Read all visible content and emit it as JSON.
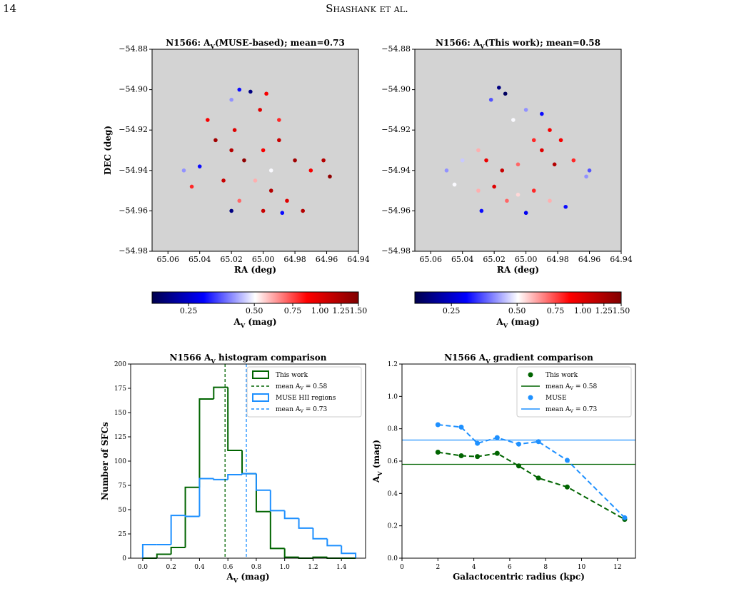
{
  "header": {
    "page_number": "14",
    "running_title": "Shashank et al."
  },
  "chart_data": [
    {
      "type": "scatter",
      "title": "N1566: A_V(MUSE-based); mean=0.73",
      "xlabel": "RA (deg)",
      "ylabel": "DEC (deg)",
      "background": "#d3d3d3",
      "xlim": [
        65.07,
        64.94
      ],
      "xticks": [
        65.06,
        65.04,
        65.02,
        {
          "value": 65.0,
          "label": "65.00"
        },
        64.98,
        64.96,
        64.94
      ],
      "ylim": [
        -54.98,
        -54.88
      ],
      "yticks": [
        {
          "value": -54.98,
          "label": "−54.98"
        },
        {
          "value": -54.96,
          "label": "−54.96"
        },
        {
          "value": -54.94,
          "label": "−54.94"
        },
        {
          "value": -54.92,
          "label": "−54.92"
        },
        {
          "value": -54.9,
          "label": "−54.90"
        },
        {
          "value": -54.88,
          "label": "−54.88"
        }
      ],
      "x": [
        65.015,
        65.008,
        64.998,
        65.02,
        65.002,
        64.99,
        65.03,
        65.04,
        65.05,
        65.02,
        65.012,
        65.0,
        64.99,
        64.98,
        64.97,
        64.962,
        64.958,
        65.025,
        65.005,
        64.995,
        64.985,
        65.015,
        65.02,
        65.0,
        64.988,
        64.975,
        65.045,
        65.035,
        65.018,
        64.995
      ],
      "y": [
        -54.9,
        -54.901,
        -54.902,
        -54.905,
        -54.91,
        -54.915,
        -54.925,
        -54.938,
        -54.94,
        -54.93,
        -54.935,
        -54.93,
        -54.925,
        -54.935,
        -54.94,
        -54.935,
        -54.943,
        -54.945,
        -54.945,
        -54.95,
        -54.955,
        -54.955,
        -54.96,
        -54.96,
        -54.961,
        -54.96,
        -54.948,
        -54.915,
        -54.92,
        -54.94
      ],
      "values": [
        0.3,
        0.2,
        0.9,
        0.4,
        1.0,
        0.8,
        1.3,
        0.3,
        0.4,
        1.2,
        1.4,
        0.9,
        1.1,
        1.3,
        0.9,
        1.2,
        1.4,
        1.1,
        0.6,
        1.2,
        1.0,
        0.7,
        0.2,
        1.1,
        0.3,
        1.2,
        0.8,
        0.9,
        1.0,
        0.5
      ],
      "colorbar": {
        "label": "A_V (mag)",
        "lim": [
          0.17,
          1.5
        ],
        "log_scale": true,
        "colors": [
          "#00004c",
          "#0000ff",
          "#ffffff",
          "#ff0000",
          "#800000"
        ],
        "ticks": [
          0.25,
          {
            "value": 0.5,
            "label": "0.50"
          },
          0.75,
          {
            "value": 1.0,
            "label": "1.00"
          },
          1.25,
          {
            "value": 1.5,
            "label": "1.50"
          }
        ]
      }
    },
    {
      "type": "scatter",
      "title": "N1566: A_V(This work); mean=0.58",
      "xlabel": "RA (deg)",
      "background": "#d3d3d3",
      "xlim": [
        65.07,
        64.94
      ],
      "xticks": [
        65.06,
        65.04,
        65.02,
        {
          "value": 65.0,
          "label": "65.00"
        },
        64.98,
        64.96,
        64.94
      ],
      "ylim": [
        -54.98,
        -54.88
      ],
      "yticks": [
        {
          "value": -54.98,
          "label": "−54.98"
        },
        {
          "value": -54.96,
          "label": "−54.96"
        },
        {
          "value": -54.94,
          "label": "−54.94"
        },
        {
          "value": -54.92,
          "label": "−54.92"
        },
        {
          "value": -54.9,
          "label": "−54.90"
        },
        {
          "value": -54.88,
          "label": "−54.88"
        }
      ],
      "x": [
        65.017,
        65.013,
        65.022,
        65.0,
        64.99,
        65.008,
        64.985,
        64.995,
        65.03,
        65.04,
        65.05,
        65.025,
        65.015,
        65.005,
        64.99,
        64.978,
        64.982,
        64.97,
        64.962,
        64.96,
        65.03,
        65.02,
        65.012,
        65.005,
        64.995,
        64.985,
        64.975,
        65.045,
        65.0,
        65.028
      ],
      "y": [
        -54.899,
        -54.902,
        -54.905,
        -54.91,
        -54.912,
        -54.915,
        -54.92,
        -54.925,
        -54.93,
        -54.935,
        -54.94,
        -54.935,
        -54.94,
        -54.937,
        -54.93,
        -54.925,
        -54.937,
        -54.935,
        -54.943,
        -54.94,
        -54.95,
        -54.948,
        -54.955,
        -54.952,
        -54.95,
        -54.955,
        -54.958,
        -54.947,
        -54.961,
        -54.96
      ],
      "values": [
        0.2,
        0.18,
        0.35,
        0.4,
        0.3,
        0.5,
        0.9,
        0.8,
        0.6,
        0.45,
        0.4,
        0.95,
        1.1,
        0.7,
        1.0,
        0.9,
        1.2,
        0.8,
        0.4,
        0.35,
        0.6,
        1.0,
        0.7,
        0.55,
        0.8,
        0.6,
        0.3,
        0.5,
        0.28,
        0.3
      ],
      "colorbar": {
        "label": "A_V (mag)",
        "lim": [
          0.17,
          1.5
        ],
        "log_scale": true,
        "colors": [
          "#00004c",
          "#0000ff",
          "#ffffff",
          "#ff0000",
          "#800000"
        ],
        "ticks": [
          0.25,
          {
            "value": 0.5,
            "label": "0.50"
          },
          0.75,
          {
            "value": 1.0,
            "label": "1.00"
          },
          1.25,
          {
            "value": 1.5,
            "label": "1.50"
          }
        ]
      }
    },
    {
      "type": "histogram",
      "title": "N1566 A_V histogram comparison",
      "xlabel": "A_V (mag)",
      "ylabel": "Number of SFCs",
      "xlim": [
        -0.085,
        1.57
      ],
      "xticks": [
        {
          "value": 0.0,
          "label": "0.0"
        },
        0.2,
        0.4,
        0.6,
        0.8,
        {
          "value": 1.0,
          "label": "1.0"
        },
        1.2,
        1.4
      ],
      "ylim": [
        0,
        200
      ],
      "yticks": [
        0,
        25,
        50,
        75,
        100,
        125,
        150,
        175,
        200
      ],
      "bins": [
        0.0,
        0.1,
        0.2,
        0.3,
        0.4,
        0.5,
        0.6,
        0.7,
        0.8,
        0.9,
        1.0,
        1.1,
        1.2,
        1.3,
        1.4,
        1.5
      ],
      "series": [
        {
          "name": "This work",
          "color": "#006400",
          "values": [
            0,
            4,
            11,
            73,
            164,
            176,
            111,
            87,
            48,
            10,
            1,
            0,
            1,
            0,
            0
          ]
        },
        {
          "name": "MUSE HII regions",
          "color": "#1e90ff",
          "values": [
            14,
            14,
            44,
            43,
            82,
            81,
            86,
            87,
            70,
            49,
            41,
            31,
            20,
            13,
            5
          ]
        }
      ],
      "vlines": [
        {
          "name": "mean A_V = 0.58",
          "value": 0.58,
          "color": "#006400"
        },
        {
          "name": "mean A_V = 0.73",
          "value": 0.73,
          "color": "#1e90ff"
        }
      ]
    },
    {
      "type": "line",
      "title": "N1566 A_V gradient comparison",
      "xlabel": "Galactocentric radius (kpc)",
      "ylabel": "A_V (mag)",
      "xlim": [
        0,
        13
      ],
      "xticks": [
        0,
        2,
        4,
        6,
        8,
        10,
        12
      ],
      "ylim": [
        0,
        1.2
      ],
      "yticks": [
        {
          "value": 0.0,
          "label": "0.0"
        },
        0.2,
        0.4,
        0.6,
        0.8,
        {
          "value": 1.0,
          "label": "1.0"
        },
        1.2
      ],
      "x": [
        2.0,
        3.3,
        4.2,
        5.3,
        6.5,
        7.6,
        9.2,
        12.4
      ],
      "series": [
        {
          "name": "This work",
          "color": "#006400",
          "values": [
            0.655,
            0.633,
            0.628,
            0.648,
            0.57,
            0.495,
            0.44,
            0.24
          ]
        },
        {
          "name": "MUSE",
          "color": "#1e90ff",
          "values": [
            0.825,
            0.81,
            0.71,
            0.745,
            0.705,
            0.72,
            0.605,
            0.25
          ]
        }
      ],
      "hlines": [
        {
          "name": "mean A_V = 0.58",
          "value": 0.58,
          "color": "#006400"
        },
        {
          "name": "mean A_V = 0.73",
          "value": 0.73,
          "color": "#1e90ff"
        }
      ]
    }
  ]
}
